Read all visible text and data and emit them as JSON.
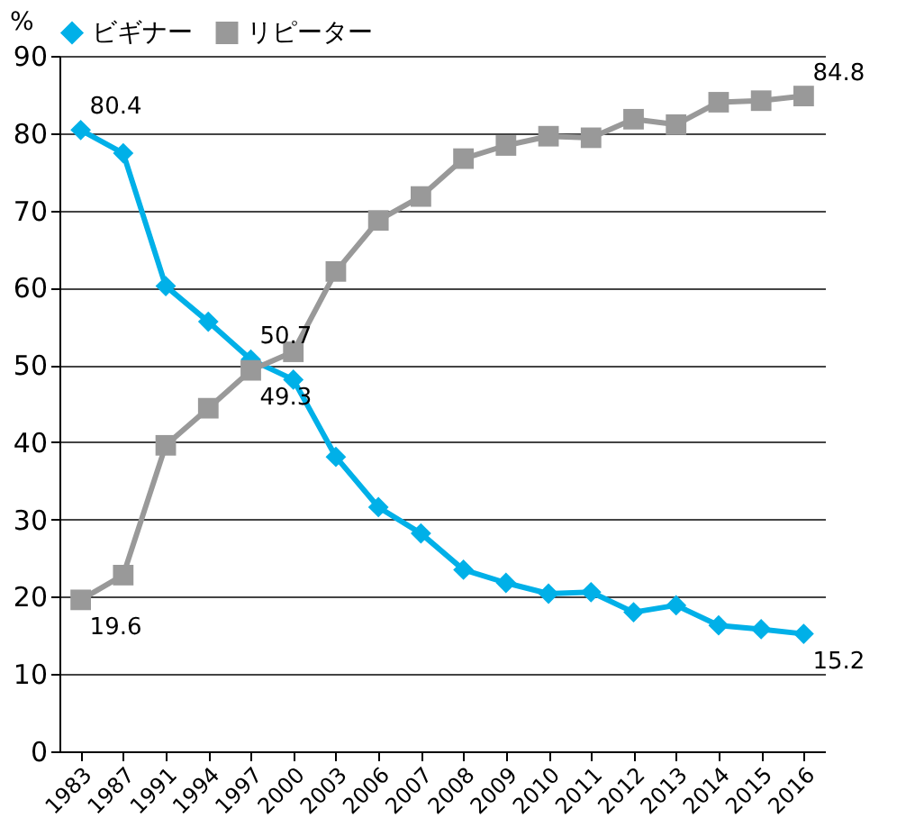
{
  "chart_data": {
    "type": "line",
    "ylabel": "%",
    "categories": [
      "1983",
      "1987",
      "1991",
      "1994",
      "1997",
      "2000",
      "2003",
      "2006",
      "2007",
      "2008",
      "2009",
      "2010",
      "2011",
      "2012",
      "2013",
      "2014",
      "2015",
      "2016"
    ],
    "series": [
      {
        "name": "ビギナー",
        "color": "#00b0e8",
        "marker": "diamond",
        "values": [
          80.4,
          77.4,
          60.2,
          55.6,
          50.7,
          48.1,
          38.1,
          31.6,
          28.2,
          23.5,
          21.8,
          20.4,
          20.6,
          18.0,
          18.9,
          16.3,
          15.8,
          15.2
        ]
      },
      {
        "name": "リピーター",
        "color": "#999999",
        "marker": "square",
        "values": [
          19.6,
          22.8,
          39.6,
          44.4,
          49.3,
          51.7,
          62.1,
          68.7,
          71.8,
          76.7,
          78.4,
          79.6,
          79.4,
          81.8,
          81.1,
          84.0,
          84.2,
          84.8
        ]
      }
    ],
    "ylim": [
      0,
      90
    ],
    "yticks": [
      0,
      10,
      20,
      30,
      40,
      50,
      60,
      70,
      80,
      90
    ],
    "grid": "y",
    "legend": "top",
    "line_style": "solid",
    "annotations": [
      {
        "text": "80.4",
        "x": "1983",
        "y": 80.4
      },
      {
        "text": "50.7",
        "x": "1997",
        "y": 50.7
      },
      {
        "text": "49.3",
        "x": "1997",
        "y": 49.3
      },
      {
        "text": "19.6",
        "x": "1983",
        "y": 19.6
      },
      {
        "text": "84.8",
        "x": "2016",
        "y": 84.8
      },
      {
        "text": "15.2",
        "x": "2016",
        "y": 15.2
      }
    ]
  }
}
